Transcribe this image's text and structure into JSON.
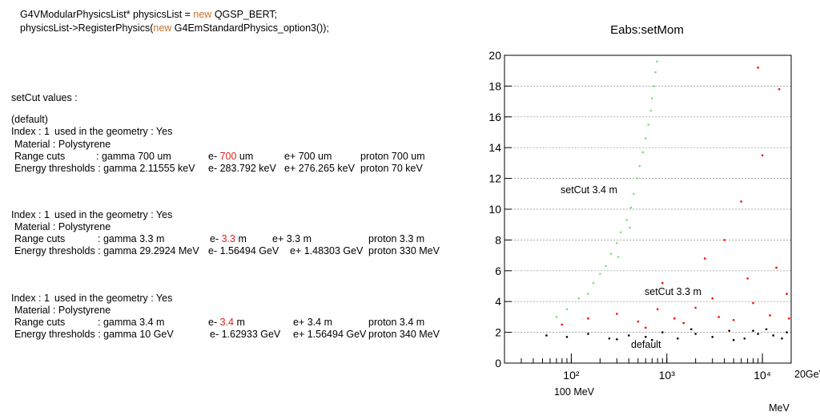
{
  "document": {
    "lines": [
      [
        {
          "text": "G4VModularPhysicsList* physicsList = "
        },
        {
          "text": "new",
          "color": "#c8702a"
        },
        {
          "text": " QGSP_BERT;"
        }
      ],
      [
        {
          "text": "physicsList->RegisterPhysics("
        },
        {
          "text": "new",
          "color": "#c8702a"
        },
        {
          "text": " G4EmStandardPhysics_option3());"
        }
      ],
      [
        {
          "text": "setCut values :"
        }
      ],
      [
        {
          "text": "(default)"
        }
      ],
      [
        {
          "text": "Index : 1"
        },
        {
          "text": "used in the geometry : Yes"
        }
      ],
      [
        {
          "text": "Material : Polystyrene"
        }
      ],
      [
        {
          "text": "Range cuts"
        },
        {
          "text": ":  gamma  700 um"
        },
        {
          "text": "e-  "
        },
        {
          "text": "700",
          "color": "#e02020"
        },
        {
          "text": " um"
        },
        {
          "text": "e+  700 um"
        },
        {
          "text": "proton 700 um"
        }
      ],
      [
        {
          "text": "Energy thresholds :  gamma  2.11555 keV"
        },
        {
          "text": "e-  283.792 keV"
        },
        {
          "text": "e+  276.265 keV"
        },
        {
          "text": "proton 70 keV"
        }
      ],
      [
        {
          "text": "Index : 1"
        },
        {
          "text": "used in the geometry : Yes"
        }
      ],
      [
        {
          "text": "Material : Polystyrene"
        }
      ],
      [
        {
          "text": "Range cuts"
        },
        {
          "text": ":  gamma  3.3 m"
        },
        {
          "text": "e-  "
        },
        {
          "text": "3.3",
          "color": "#e02020"
        },
        {
          "text": " m"
        },
        {
          "text": "e+  3.3 m"
        },
        {
          "text": "proton 3.3 m"
        }
      ],
      [
        {
          "text": "Energy thresholds :  gamma  29.2924 MeV"
        },
        {
          "text": "e-  1.56494 GeV"
        },
        {
          "text": "e+  1.48303 GeV"
        },
        {
          "text": "proton 330 MeV"
        }
      ],
      [
        {
          "text": "Index : 1"
        },
        {
          "text": "used in the geometry : Yes"
        }
      ],
      [
        {
          "text": "Material : Polystyrene"
        }
      ],
      [
        {
          "text": "Range cuts"
        },
        {
          "text": ":  gamma  3.4 m"
        },
        {
          "text": "e-  "
        },
        {
          "text": "3.4",
          "color": "#e02020"
        },
        {
          "text": " m"
        },
        {
          "text": "e+  3.4 m"
        },
        {
          "text": "proton 3.4 m"
        }
      ],
      [
        {
          "text": "Energy thresholds :  gamma  10 GeV"
        },
        {
          "text": "e-  1.62933 GeV"
        },
        {
          "text": "e+  1.56494 GeV"
        },
        {
          "text": "proton 340 MeV"
        }
      ]
    ]
  },
  "chart_data": {
    "type": "scatter",
    "title": "Eabs:setMom",
    "xscale": "log",
    "xlim": [
      20,
      20000
    ],
    "xticks": [
      {
        "value": 100,
        "label": "10²"
      },
      {
        "value": 1000,
        "label": "10³"
      },
      {
        "value": 10000,
        "label": "10⁴"
      }
    ],
    "ylim": [
      0,
      20
    ],
    "yticks": [
      0,
      2,
      4,
      6,
      8,
      10,
      12,
      14,
      16,
      18,
      20
    ],
    "grid": true,
    "annotations": [
      "100 MeV",
      "20GeV",
      "MeV"
    ],
    "series": [
      {
        "name": "setCut 3.4 m",
        "color": "#7be07b",
        "x": [
          70,
          90,
          120,
          150,
          170,
          200,
          230,
          260,
          300,
          330,
          380,
          420,
          450,
          490,
          520,
          560,
          600,
          640,
          680,
          700,
          730,
          760,
          790,
          310,
          410
        ],
        "values": [
          3.0,
          3.5,
          4.2,
          4.5,
          5.2,
          5.8,
          6.3,
          7.1,
          7.8,
          8.5,
          9.3,
          10.1,
          11.0,
          12.0,
          12.8,
          13.7,
          14.6,
          15.5,
          16.4,
          17.2,
          18.0,
          18.9,
          19.6,
          6.9,
          8.8
        ]
      },
      {
        "name": "setCut 3.3 m",
        "color": "#ff0000",
        "x": [
          80,
          150,
          300,
          500,
          800,
          1200,
          2000,
          3000,
          5000,
          8000,
          12000,
          18000,
          2500,
          6000,
          15000,
          900,
          4000,
          10000,
          1500,
          7000,
          19000,
          600,
          3500,
          14000,
          9000
        ],
        "values": [
          2.5,
          2.9,
          3.2,
          2.7,
          3.5,
          2.9,
          3.6,
          4.2,
          2.8,
          3.9,
          3.1,
          4.5,
          6.8,
          10.5,
          17.8,
          5.2,
          8.0,
          13.5,
          2.6,
          5.5,
          2.9,
          2.3,
          3.0,
          6.2,
          19.2
        ]
      },
      {
        "name": "default",
        "color": "#000000",
        "x": [
          55,
          90,
          150,
          250,
          400,
          600,
          900,
          1300,
          2000,
          3000,
          4500,
          6500,
          9000,
          13000,
          18000,
          700,
          1800,
          5000,
          11000,
          16000,
          300,
          8000
        ],
        "values": [
          1.8,
          1.7,
          1.9,
          1.6,
          1.8,
          1.7,
          2.0,
          1.6,
          1.9,
          1.7,
          2.1,
          1.6,
          1.9,
          1.8,
          2.0,
          1.5,
          2.2,
          1.5,
          2.2,
          1.6,
          1.55,
          2.1
        ]
      }
    ]
  }
}
